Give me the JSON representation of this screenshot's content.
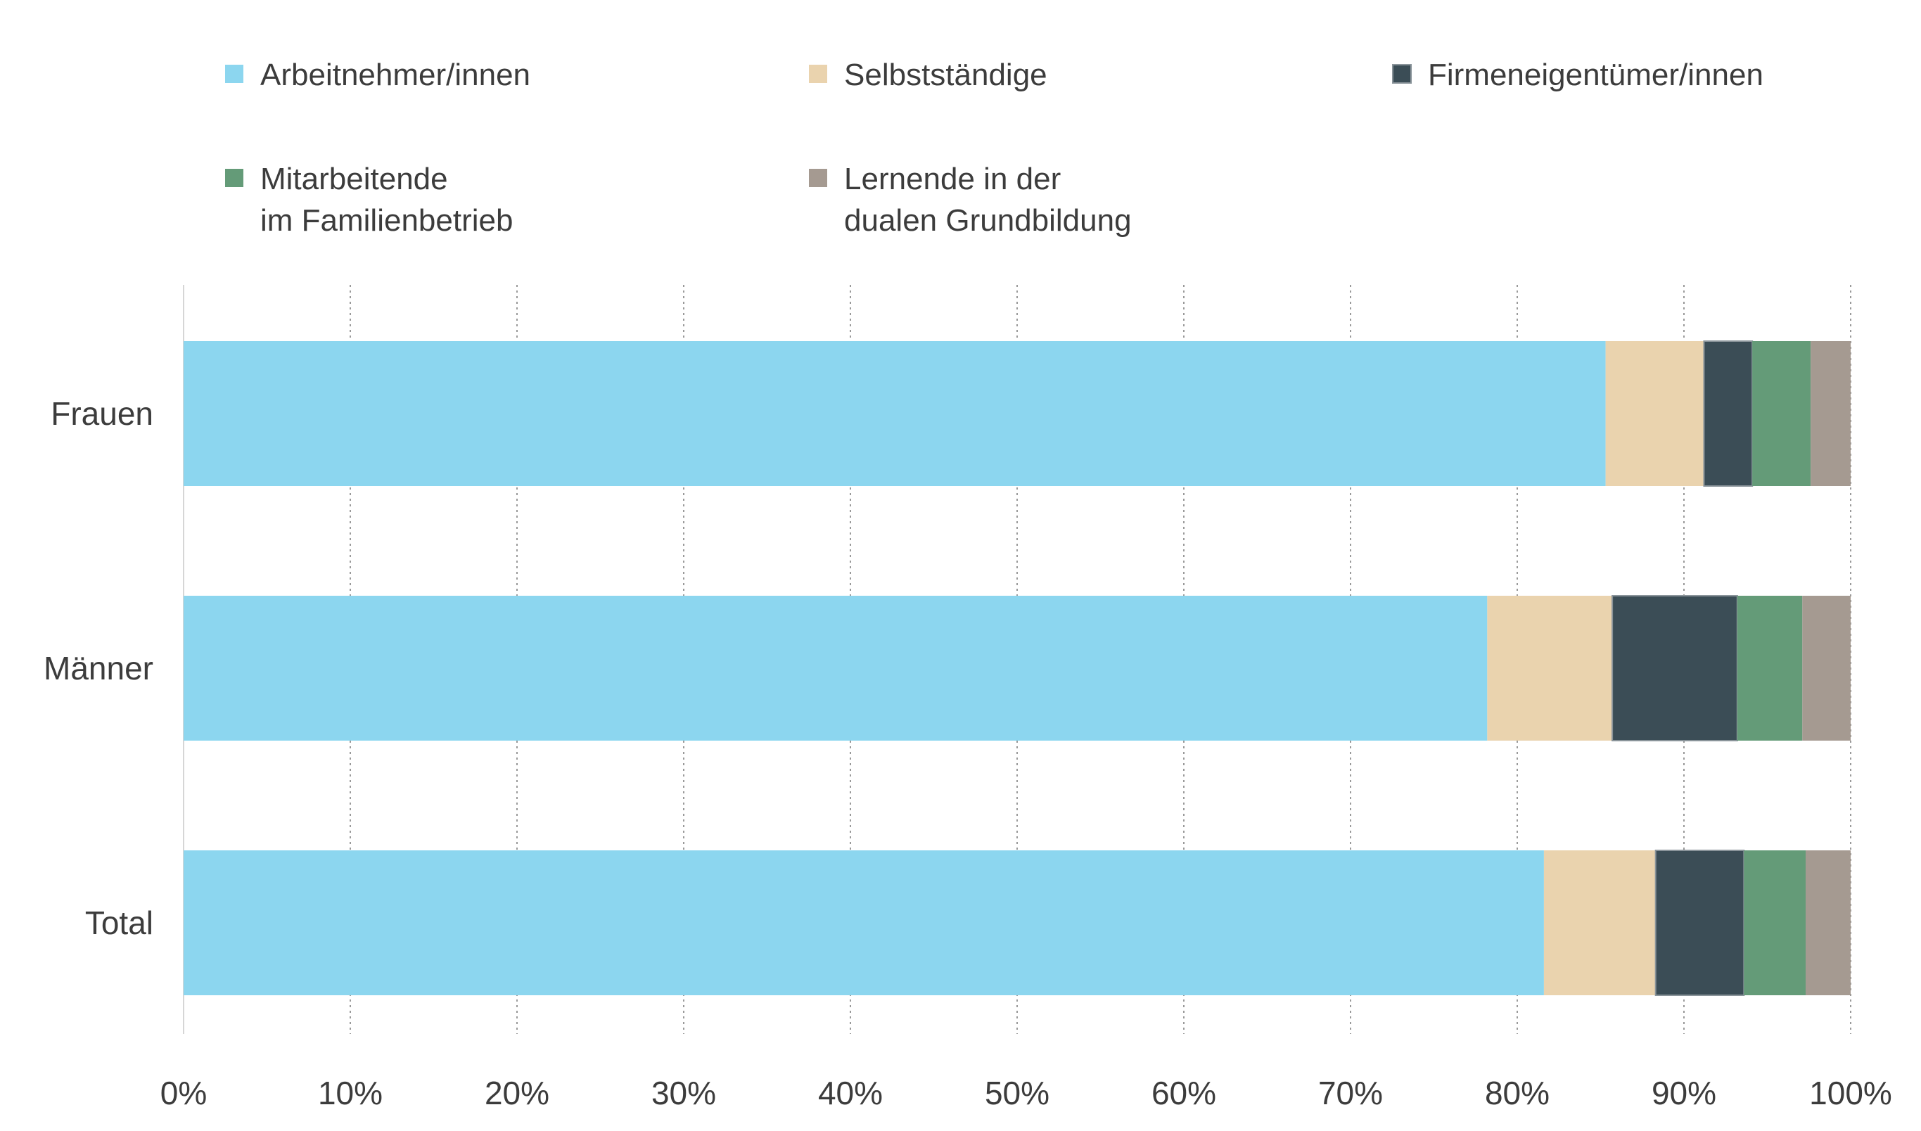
{
  "chart_data": {
    "type": "bar",
    "orientation": "horizontal",
    "stacked": true,
    "title": "",
    "xlabel": "",
    "ylabel": "",
    "xlim": [
      0,
      100
    ],
    "unit": "%",
    "grid": "vertical-dotted",
    "legend_position": "top",
    "categories": [
      "Frauen",
      "Männer",
      "Total"
    ],
    "x_ticks": [
      "0%",
      "10%",
      "20%",
      "30%",
      "40%",
      "50%",
      "60%",
      "70%",
      "80%",
      "90%",
      "100%"
    ],
    "series": [
      {
        "name": "Arbeitnehmer/innen",
        "name_lines": [
          "Arbeitnehmer/innen"
        ],
        "color": "#8cd6ef",
        "values": [
          85.3,
          78.2,
          81.6
        ]
      },
      {
        "name": "Selbstständige",
        "name_lines": [
          "Selbstständige"
        ],
        "color": "#ead3ae",
        "values": [
          5.9,
          7.5,
          6.7
        ]
      },
      {
        "name": "Firmeneigentümer/innen",
        "name_lines": [
          "Firmeneigentümer/innen"
        ],
        "color": "#3b4d56",
        "values": [
          2.9,
          7.5,
          5.3
        ]
      },
      {
        "name": "Mitarbeitende im Familienbetrieb",
        "name_lines": [
          "Mitarbeitende",
          "im Familienbetrieb"
        ],
        "color": "#649b78",
        "values": [
          3.5,
          3.9,
          3.7
        ]
      },
      {
        "name": "Lernende in der dualen Grundbildung",
        "name_lines": [
          "Lernende in der",
          "dualen Grundbildung"
        ],
        "color": "#a59a91",
        "values": [
          2.4,
          2.9,
          2.7
        ]
      }
    ]
  }
}
